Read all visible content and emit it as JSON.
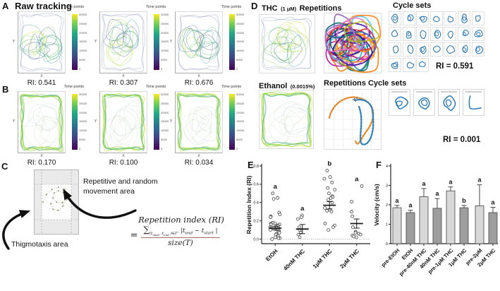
{
  "colorbar": {
    "label": "Time points",
    "ticks": [
      "30000",
      "25000",
      "20000",
      "15000",
      "10000",
      "5000",
      "0"
    ]
  },
  "axes": {
    "x": "X",
    "y": "Y"
  },
  "panels": {
    "A": {
      "label": "A",
      "title": "Raw tracking",
      "plots": [
        {
          "ri": "RI: 0.541"
        },
        {
          "ri": "RI: 0.307"
        },
        {
          "ri": "RI: 0.676"
        }
      ]
    },
    "B": {
      "label": "B",
      "plots": [
        {
          "ri": "RI: 0.170"
        },
        {
          "ri": "RI: 0.100"
        },
        {
          "ri": "RI: 0.034"
        }
      ]
    },
    "C": {
      "label": "C",
      "annotation_repetitive": "Repetitive and random movement area",
      "annotation_thigmotaxis": "Thigmotaxis area",
      "formula": {
        "title": "Repetition index (RI)",
        "eq": "=",
        "sum": "∑",
        "sumsub": {
          "p1": "(t",
          "s1": "start",
          "p2": " ,t",
          "s2": "end",
          "p3": " )∈Γ′"
        },
        "num": {
          "p1": " |t",
          "s1": "end",
          "p2": " − t",
          "s2": "start",
          "p3": " |"
        },
        "den": "size(T)"
      }
    },
    "D": {
      "label": "D",
      "thc": {
        "name": "THC",
        "dose": "(1 μM)",
        "suffix": "Repetitions"
      },
      "cycle_sets_title": "Cycle sets",
      "ri_top": "RI = 0.591",
      "ethanol": {
        "name": "Ethanol",
        "dose": "(0.0015%)"
      },
      "rep_cycle_title": "Repetitions Cycle sets",
      "ri_bottom": "RI = 0.001"
    },
    "E": {
      "label": "E"
    },
    "F": {
      "label": "F"
    }
  },
  "chart_data": [
    {
      "panel": "E",
      "type": "scatter",
      "ylabel": "Repetition Index (RI)",
      "ylim": [
        -0.05,
        0.8
      ],
      "yticks": [
        0.0,
        0.2,
        0.4,
        0.6,
        0.8
      ],
      "categories": [
        "EtOH",
        "40nM THC",
        "1μM THC",
        "2μM THC"
      ],
      "sig_letters": [
        "a",
        "a",
        "b",
        "a"
      ],
      "means": [
        0.12,
        0.11,
        0.37,
        0.17
      ],
      "sems": [
        0.02,
        0.05,
        0.04,
        0.05
      ],
      "baseline": 0.0,
      "points": [
        [
          0.5,
          0.45,
          0.44,
          0.29,
          0.27,
          0.25,
          0.24,
          0.18,
          0.17,
          0.17,
          0.16,
          0.16,
          0.15,
          0.15,
          0.14,
          0.13,
          0.13,
          0.12,
          0.12,
          0.11,
          0.1,
          0.1,
          0.09,
          0.08,
          0.07,
          0.06,
          0.05,
          0.03,
          0.02,
          0.01,
          0.01,
          0.0
        ],
        [
          0.26,
          0.24,
          0.22,
          0.13,
          0.1,
          0.07,
          0.05,
          0.02
        ],
        [
          0.75,
          0.68,
          0.66,
          0.62,
          0.56,
          0.54,
          0.5,
          0.47,
          0.46,
          0.45,
          0.43,
          0.4,
          0.34,
          0.32,
          0.31,
          0.3,
          0.17,
          0.15,
          0.13,
          0.1
        ],
        [
          0.58,
          0.41,
          0.3,
          0.25,
          0.13,
          0.08,
          0.07,
          0.06,
          0.05,
          0.04,
          0.03,
          0.02
        ]
      ]
    },
    {
      "panel": "F",
      "type": "bar",
      "ylabel": "Velocity (cm/s)",
      "ylim": [
        0,
        4
      ],
      "yticks": [
        0,
        1,
        2,
        3,
        4
      ],
      "categories": [
        "pre-EtOH",
        "EtOH",
        "pre-40nM THC",
        "40nM THC",
        "pre-1μM THC",
        "1μM THC",
        "pre-2μM",
        "2μM THC"
      ],
      "values": [
        1.85,
        1.6,
        2.42,
        1.82,
        2.72,
        1.85,
        1.95,
        1.6
      ],
      "errors": [
        0.12,
        0.12,
        0.42,
        0.5,
        0.2,
        0.12,
        1.08,
        0.27
      ],
      "sig_letters": [
        "a",
        "a",
        "a",
        "a",
        "a",
        "b",
        "a",
        "a"
      ],
      "bar_colors": {
        "pre": "#d8d8d8",
        "treatment": "#9e9e9e"
      }
    },
    {
      "panel": "A",
      "type": "trajectory",
      "ri_values": [
        0.541,
        0.307,
        0.676
      ]
    },
    {
      "panel": "B",
      "type": "trajectory",
      "ri_values": [
        0.17,
        0.1,
        0.034
      ]
    },
    {
      "panel": "D",
      "type": "trajectory",
      "ri_values": {
        "thc_1uM_repetitions": 0.591,
        "ethanol_repetitions": 0.001
      }
    }
  ]
}
